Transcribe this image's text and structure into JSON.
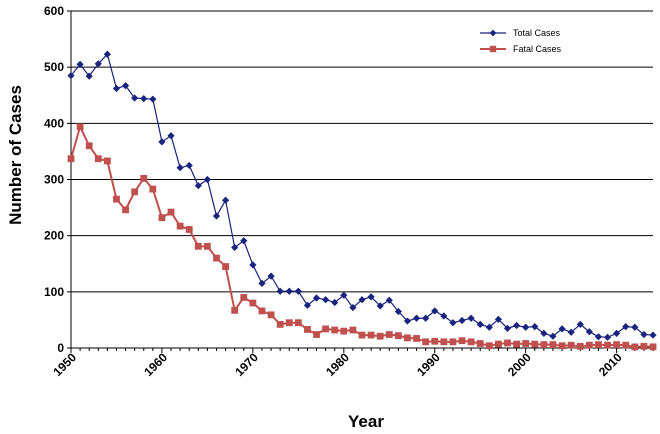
{
  "chart_data": {
    "type": "line",
    "xlabel": "Year",
    "ylabel": "Number of Cases",
    "xlim": [
      1950,
      2014
    ],
    "ylim": [
      0,
      600
    ],
    "x_ticks": [
      1950,
      1960,
      1970,
      1980,
      1990,
      2000,
      2010
    ],
    "y_ticks": [
      0,
      100,
      200,
      300,
      400,
      500,
      600
    ],
    "grid": "horizontal",
    "legend_position": "top-right",
    "x": [
      1950,
      1951,
      1952,
      1953,
      1954,
      1955,
      1956,
      1957,
      1958,
      1959,
      1960,
      1961,
      1962,
      1963,
      1964,
      1965,
      1966,
      1967,
      1968,
      1969,
      1970,
      1971,
      1972,
      1973,
      1974,
      1975,
      1976,
      1977,
      1978,
      1979,
      1980,
      1981,
      1982,
      1983,
      1984,
      1985,
      1986,
      1987,
      1988,
      1989,
      1990,
      1991,
      1992,
      1993,
      1994,
      1995,
      1996,
      1997,
      1998,
      1999,
      2000,
      2001,
      2002,
      2003,
      2004,
      2005,
      2006,
      2007,
      2008,
      2009,
      2010,
      2011,
      2012,
      2013,
      2014
    ],
    "series": [
      {
        "name": "Total Cases",
        "color": "#1a237e",
        "marker": "diamond",
        "values": [
          485,
          505,
          484,
          506,
          523,
          462,
          467,
          445,
          444,
          443,
          367,
          378,
          321,
          325,
          289,
          300,
          235,
          263,
          179,
          191,
          148,
          115,
          128,
          101,
          101,
          101,
          76,
          89,
          86,
          81,
          94,
          72,
          86,
          91,
          75,
          85,
          65,
          48,
          53,
          53,
          66,
          57,
          45,
          49,
          53,
          42,
          37,
          51,
          35,
          40,
          37,
          38,
          26,
          21,
          34,
          28,
          42,
          29,
          20,
          19,
          26,
          38,
          37,
          24,
          23
        ],
        "first_marker_index": 0
      },
      {
        "name": "Fatal Cases",
        "color": "#c0504d",
        "marker": "square",
        "values": [
          337,
          394,
          360,
          337,
          333,
          265,
          246,
          278,
          302,
          283,
          232,
          242,
          217,
          211,
          181,
          181,
          160,
          145,
          67,
          90,
          80,
          66,
          59,
          42,
          45,
          45,
          33,
          24,
          34,
          32,
          30,
          32,
          23,
          23,
          21,
          24,
          22,
          18,
          17,
          11,
          12,
          11,
          11,
          13,
          11,
          8,
          4,
          7,
          9,
          7,
          8,
          7,
          6,
          6,
          4,
          5,
          3,
          5,
          6,
          5,
          6,
          5,
          2,
          3,
          2
        ],
        "first_marker_index": 0
      }
    ]
  }
}
